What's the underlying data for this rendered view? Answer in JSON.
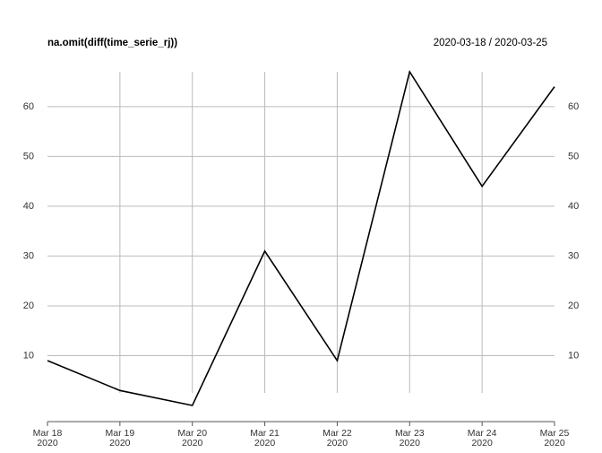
{
  "chart_data": {
    "type": "line",
    "title": "na.omit(diff(time_serie_rj))",
    "subtitle": "2020-03-18 / 2020-03-25",
    "categories": [
      "Mar 18\n2020",
      "Mar 19\n2020",
      "Mar 20\n2020",
      "Mar 21\n2020",
      "Mar 22\n2020",
      "Mar 23\n2020",
      "Mar 24\n2020",
      "Mar 25\n2020"
    ],
    "values": [
      9,
      3,
      0,
      31,
      9,
      67,
      44,
      64
    ],
    "color": "#000000",
    "ylim": [
      0,
      67
    ],
    "yticks": [
      10,
      20,
      30,
      40,
      50,
      60
    ],
    "grid": true
  }
}
